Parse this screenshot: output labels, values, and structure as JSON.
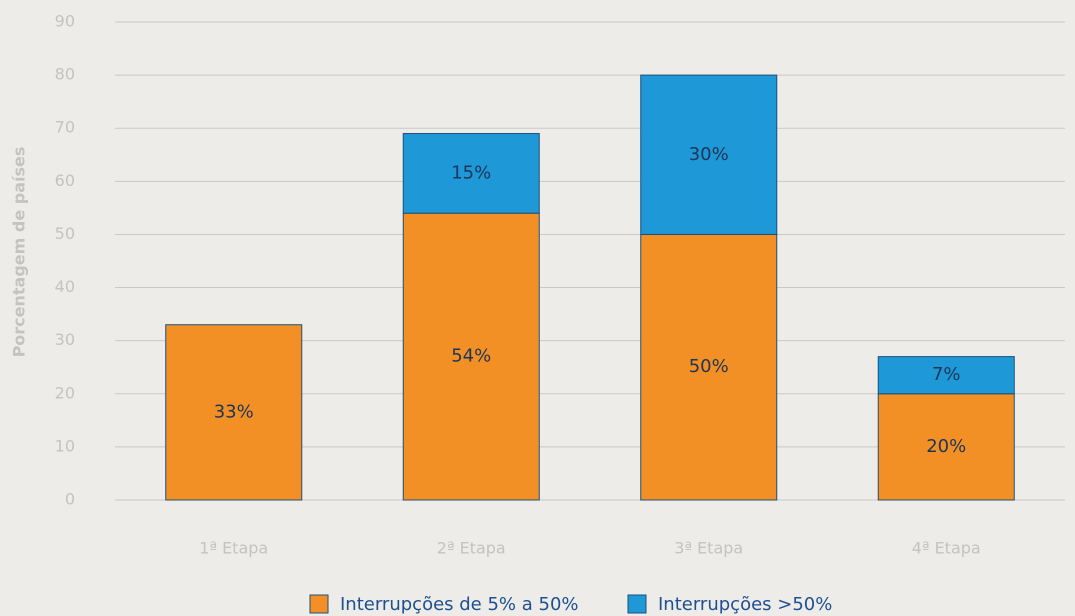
{
  "chart_data": {
    "type": "stacked_bar",
    "y_label": "Porcentagem de países",
    "categories": [
      "1ª Etapa",
      "2ª Etapa",
      "3ª Etapa",
      "4ª Etapa"
    ],
    "series": [
      {
        "name": "Interrupções de 5% a 50%",
        "color": "#f39025",
        "values": [
          33,
          54,
          50,
          20
        ],
        "value_labels": [
          "33%",
          "54%",
          "50%",
          "20%"
        ]
      },
      {
        "name": "Interrupções >50%",
        "color": "#1e98d6",
        "values": [
          null,
          15,
          30,
          7
        ],
        "value_labels": [
          null,
          "15%",
          "30%",
          "7%"
        ]
      }
    ],
    "ylim": [
      0,
      90
    ],
    "yticks": [
      0,
      10,
      20,
      30,
      40,
      50,
      60,
      70,
      80,
      90
    ],
    "grid": true
  }
}
